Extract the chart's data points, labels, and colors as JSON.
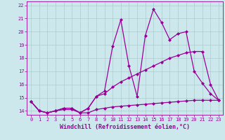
{
  "xlabel": "Windchill (Refroidissement éolien,°C)",
  "background_color": "#cce8ec",
  "line_color": "#990099",
  "grid_color": "#aacccc",
  "xlim": [
    -0.5,
    23.5
  ],
  "ylim": [
    13.7,
    22.3
  ],
  "xticks": [
    0,
    1,
    2,
    3,
    4,
    5,
    6,
    7,
    8,
    9,
    10,
    11,
    12,
    13,
    14,
    15,
    16,
    17,
    18,
    19,
    20,
    21,
    22,
    23
  ],
  "yticks": [
    14,
    15,
    16,
    17,
    18,
    19,
    20,
    21,
    22
  ],
  "line1_x": [
    0,
    1,
    2,
    3,
    4,
    5,
    6,
    7,
    8,
    9,
    10,
    11,
    12,
    13,
    14,
    15,
    16,
    17,
    18,
    19,
    20,
    21,
    22,
    23
  ],
  "line1_y": [
    14.7,
    14.0,
    13.85,
    14.0,
    14.1,
    14.1,
    13.85,
    13.85,
    14.1,
    14.2,
    14.3,
    14.35,
    14.4,
    14.45,
    14.5,
    14.55,
    14.6,
    14.65,
    14.7,
    14.75,
    14.8,
    14.8,
    14.8,
    14.8
  ],
  "line2_x": [
    0,
    1,
    2,
    3,
    4,
    5,
    6,
    7,
    8,
    9,
    10,
    11,
    12,
    13,
    14,
    15,
    16,
    17,
    18,
    19,
    20,
    21,
    22,
    23
  ],
  "line2_y": [
    14.7,
    14.0,
    13.85,
    14.0,
    14.2,
    14.2,
    13.85,
    14.2,
    15.1,
    15.3,
    15.8,
    16.2,
    16.5,
    16.8,
    17.1,
    17.4,
    17.7,
    18.0,
    18.2,
    18.4,
    18.5,
    18.5,
    16.0,
    14.8
  ],
  "line3_x": [
    0,
    1,
    2,
    3,
    4,
    5,
    6,
    7,
    8,
    9,
    10,
    11,
    12,
    13,
    14,
    15,
    16,
    17,
    18,
    19,
    20,
    21,
    22,
    23
  ],
  "line3_y": [
    14.7,
    14.0,
    13.85,
    14.0,
    14.2,
    14.2,
    13.85,
    14.2,
    15.1,
    15.5,
    18.9,
    20.9,
    17.4,
    15.1,
    19.7,
    21.7,
    20.7,
    19.4,
    19.85,
    20.0,
    17.0,
    16.1,
    15.3,
    14.8
  ],
  "marker": "D",
  "markersize": 2,
  "linewidth": 0.9,
  "tick_fontsize": 5,
  "xlabel_fontsize": 6
}
